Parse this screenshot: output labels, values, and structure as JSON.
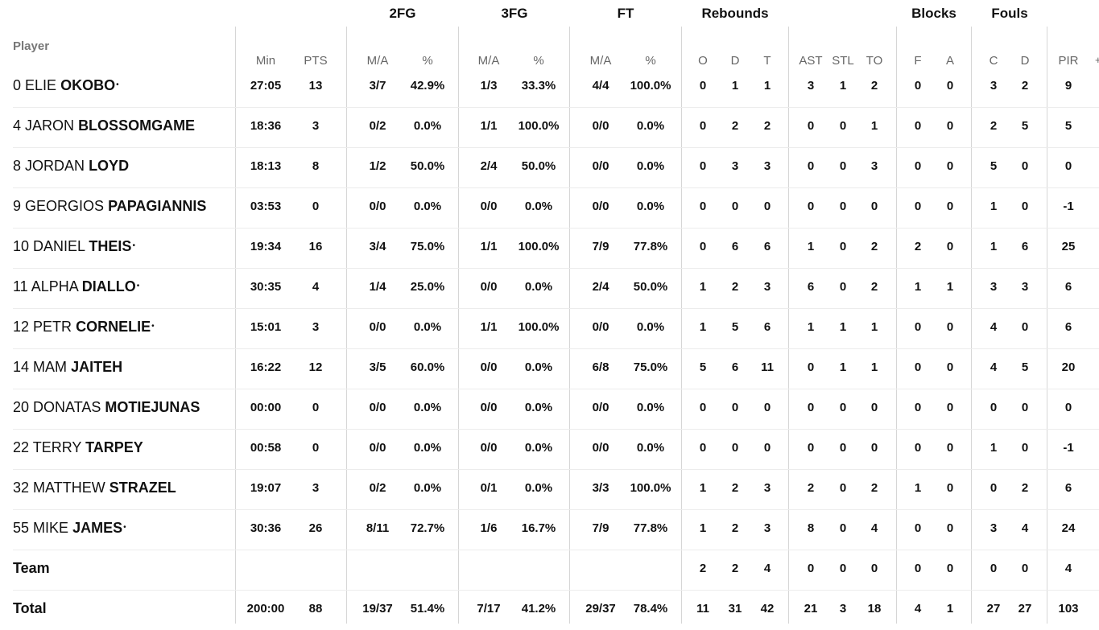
{
  "groups": [
    "2FG",
    "3FG",
    "FT",
    "Rebounds",
    "Blocks",
    "Fouls"
  ],
  "player_header": "Player",
  "columns": [
    "Min",
    "PTS",
    "M/A",
    "%",
    "M/A",
    "%",
    "M/A",
    "%",
    "O",
    "D",
    "T",
    "AST",
    "STL",
    "TO",
    "F",
    "A",
    "C",
    "D",
    "PIR"
  ],
  "plus_label": "+",
  "starter_marker": "•",
  "rows": [
    {
      "num": "0",
      "first": "ELIE",
      "last": "OKOBO",
      "starter": true,
      "cells": [
        "27:05",
        "13",
        "3/7",
        "42.9%",
        "1/3",
        "33.3%",
        "4/4",
        "100.0%",
        "0",
        "1",
        "1",
        "3",
        "1",
        "2",
        "0",
        "0",
        "3",
        "2",
        "9"
      ]
    },
    {
      "num": "4",
      "first": "JARON",
      "last": "BLOSSOMGAME",
      "starter": false,
      "cells": [
        "18:36",
        "3",
        "0/2",
        "0.0%",
        "1/1",
        "100.0%",
        "0/0",
        "0.0%",
        "0",
        "2",
        "2",
        "0",
        "0",
        "1",
        "0",
        "0",
        "2",
        "5",
        "5"
      ]
    },
    {
      "num": "8",
      "first": "JORDAN",
      "last": "LOYD",
      "starter": false,
      "cells": [
        "18:13",
        "8",
        "1/2",
        "50.0%",
        "2/4",
        "50.0%",
        "0/0",
        "0.0%",
        "0",
        "3",
        "3",
        "0",
        "0",
        "3",
        "0",
        "0",
        "5",
        "0",
        "0"
      ]
    },
    {
      "num": "9",
      "first": "GEORGIOS",
      "last": "PAPAGIANNIS",
      "starter": false,
      "cells": [
        "03:53",
        "0",
        "0/0",
        "0.0%",
        "0/0",
        "0.0%",
        "0/0",
        "0.0%",
        "0",
        "0",
        "0",
        "0",
        "0",
        "0",
        "0",
        "0",
        "1",
        "0",
        "-1"
      ]
    },
    {
      "num": "10",
      "first": "DANIEL",
      "last": "THEIS",
      "starter": true,
      "cells": [
        "19:34",
        "16",
        "3/4",
        "75.0%",
        "1/1",
        "100.0%",
        "7/9",
        "77.8%",
        "0",
        "6",
        "6",
        "1",
        "0",
        "2",
        "2",
        "0",
        "1",
        "6",
        "25"
      ]
    },
    {
      "num": "11",
      "first": "ALPHA",
      "last": "DIALLO",
      "starter": true,
      "cells": [
        "30:35",
        "4",
        "1/4",
        "25.0%",
        "0/0",
        "0.0%",
        "2/4",
        "50.0%",
        "1",
        "2",
        "3",
        "6",
        "0",
        "2",
        "1",
        "1",
        "3",
        "3",
        "6"
      ]
    },
    {
      "num": "12",
      "first": "PETR",
      "last": "CORNELIE",
      "starter": true,
      "cells": [
        "15:01",
        "3",
        "0/0",
        "0.0%",
        "1/1",
        "100.0%",
        "0/0",
        "0.0%",
        "1",
        "5",
        "6",
        "1",
        "1",
        "1",
        "0",
        "0",
        "4",
        "0",
        "6"
      ]
    },
    {
      "num": "14",
      "first": "MAM",
      "last": "JAITEH",
      "starter": false,
      "cells": [
        "16:22",
        "12",
        "3/5",
        "60.0%",
        "0/0",
        "0.0%",
        "6/8",
        "75.0%",
        "5",
        "6",
        "11",
        "0",
        "1",
        "1",
        "0",
        "0",
        "4",
        "5",
        "20"
      ]
    },
    {
      "num": "20",
      "first": "DONATAS",
      "last": "MOTIEJUNAS",
      "starter": false,
      "cells": [
        "00:00",
        "0",
        "0/0",
        "0.0%",
        "0/0",
        "0.0%",
        "0/0",
        "0.0%",
        "0",
        "0",
        "0",
        "0",
        "0",
        "0",
        "0",
        "0",
        "0",
        "0",
        "0"
      ]
    },
    {
      "num": "22",
      "first": "TERRY",
      "last": "TARPEY",
      "starter": false,
      "cells": [
        "00:58",
        "0",
        "0/0",
        "0.0%",
        "0/0",
        "0.0%",
        "0/0",
        "0.0%",
        "0",
        "0",
        "0",
        "0",
        "0",
        "0",
        "0",
        "0",
        "1",
        "0",
        "-1"
      ]
    },
    {
      "num": "32",
      "first": "MATTHEW",
      "last": "STRAZEL",
      "starter": false,
      "cells": [
        "19:07",
        "3",
        "0/2",
        "0.0%",
        "0/1",
        "0.0%",
        "3/3",
        "100.0%",
        "1",
        "2",
        "3",
        "2",
        "0",
        "2",
        "1",
        "0",
        "0",
        "2",
        "6"
      ]
    },
    {
      "num": "55",
      "first": "MIKE",
      "last": "JAMES",
      "starter": true,
      "cells": [
        "30:36",
        "26",
        "8/11",
        "72.7%",
        "1/6",
        "16.7%",
        "7/9",
        "77.8%",
        "1",
        "2",
        "3",
        "8",
        "0",
        "4",
        "0",
        "0",
        "3",
        "4",
        "24"
      ]
    }
  ],
  "team_row": {
    "label": "Team",
    "cells": [
      "",
      "",
      "",
      "",
      "",
      "",
      "",
      "",
      "2",
      "2",
      "4",
      "0",
      "0",
      "0",
      "0",
      "0",
      "0",
      "0",
      "4"
    ]
  },
  "total_row": {
    "label": "Total",
    "cells": [
      "200:00",
      "88",
      "19/37",
      "51.4%",
      "7/17",
      "41.2%",
      "29/37",
      "78.4%",
      "11",
      "31",
      "42",
      "21",
      "3",
      "18",
      "4",
      "1",
      "27",
      "27",
      "103"
    ]
  }
}
